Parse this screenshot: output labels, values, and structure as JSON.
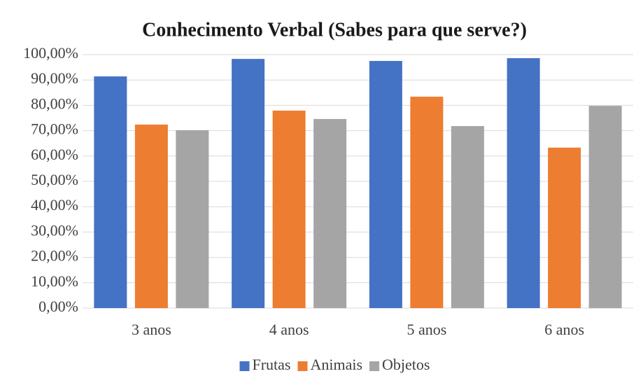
{
  "chart_data": {
    "type": "bar",
    "title": "Conhecimento Verbal (Sabes para que serve?)",
    "categories": [
      "3 anos",
      "4 anos",
      "5 anos",
      "6 anos"
    ],
    "series": [
      {
        "name": "Frutas",
        "color": "#4472c4",
        "values": [
          91.4,
          98.3,
          97.5,
          98.6
        ]
      },
      {
        "name": "Animais",
        "color": "#ed7d31",
        "values": [
          72.4,
          77.9,
          83.4,
          63.3
        ]
      },
      {
        "name": "Objetos",
        "color": "#a5a5a5",
        "values": [
          70.2,
          74.6,
          71.8,
          79.8
        ]
      }
    ],
    "ylim": [
      0,
      100
    ],
    "yticks": [
      {
        "value": 0,
        "label": "0,00%"
      },
      {
        "value": 10,
        "label": "10,00%"
      },
      {
        "value": 20,
        "label": "20,00%"
      },
      {
        "value": 30,
        "label": "30,00%"
      },
      {
        "value": 40,
        "label": "40,00%"
      },
      {
        "value": 50,
        "label": "50,00%"
      },
      {
        "value": 60,
        "label": "60,00%"
      },
      {
        "value": 70,
        "label": "70,00%"
      },
      {
        "value": 80,
        "label": "80,00%"
      },
      {
        "value": 90,
        "label": "90,00%"
      },
      {
        "value": 100,
        "label": "100,00%"
      }
    ],
    "grid": true,
    "legend": "bottom"
  }
}
